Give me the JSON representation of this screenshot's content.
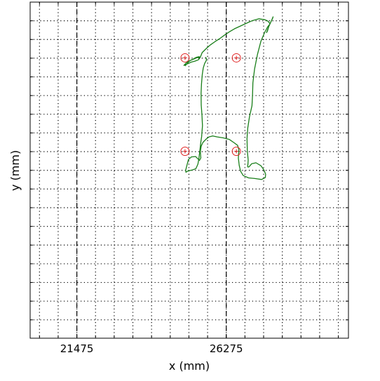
{
  "chart_data": {
    "type": "line",
    "xlabel": "x (mm)",
    "ylabel": "y (mm)",
    "xticks": [
      {
        "value": 21475,
        "label": "21475"
      },
      {
        "value": 26275,
        "label": "26275"
      }
    ],
    "xlim": [
      19975,
      30200
    ],
    "ylim": [
      -10250,
      0
    ],
    "grid": true,
    "grid_step_x": 600,
    "grid_step_y": 570,
    "colors": {
      "path": "#1a7f1a",
      "markers": "#e02020",
      "grid": "#000000",
      "reference_lines": "#000000"
    },
    "reference_lines_x": [
      21475,
      26275
    ],
    "path": {
      "x": [
        24950,
        25055,
        25135,
        25210,
        25280,
        25330,
        25395,
        25440,
        25380,
        25270,
        25150,
        25060,
        24980,
        24915,
        25000,
        25120,
        25225,
        25320,
        25395,
        25430,
        25460,
        25500,
        25650,
        25770,
        25920,
        26085,
        26230,
        26385,
        26545,
        26730,
        26935,
        27125,
        27325,
        27520,
        27615,
        27680,
        27760,
        27780,
        27730,
        27640,
        27570,
        27600,
        27660,
        27600,
        27510,
        27390,
        27280,
        27185,
        27130,
        27120,
        27100,
        27020,
        26965,
        26940,
        26950,
        26980,
        26970,
        26960,
        26975,
        27010,
        27090,
        27230,
        27390,
        27480,
        27540,
        27530,
        27410,
        27190,
        26990,
        26820,
        26735,
        26690,
        26665,
        26680,
        26640,
        26530,
        26375,
        26180,
        25985,
        25840,
        25720,
        25625,
        25525,
        25470,
        25440,
        25460,
        25415,
        25290,
        25155,
        25060,
        25010,
        24970,
        24980,
        25040,
        25180,
        25300,
        25365,
        25395,
        25425,
        25455,
        25485,
        25510,
        25495,
        25470,
        25465,
        25480,
        25505,
        25535,
        25580,
        25640,
        25630,
        25600
      ],
      "y": [
        -1950,
        -1830,
        -1770,
        -1740,
        -1700,
        -1680,
        -1665,
        -1685,
        -1760,
        -1800,
        -1830,
        -1870,
        -1900,
        -1930,
        -1840,
        -1780,
        -1740,
        -1700,
        -1690,
        -1685,
        -1640,
        -1540,
        -1400,
        -1300,
        -1200,
        -1100,
        -1000,
        -900,
        -810,
        -730,
        -640,
        -560,
        -510,
        -540,
        -580,
        -660,
        -500,
        -450,
        -560,
        -750,
        -930,
        -870,
        -690,
        -760,
        -920,
        -1190,
        -1590,
        -2040,
        -2460,
        -2830,
        -3160,
        -3500,
        -3840,
        -4160,
        -4520,
        -4820,
        -4950,
        -5010,
        -5030,
        -5020,
        -4930,
        -4900,
        -4990,
        -5110,
        -5250,
        -5350,
        -5410,
        -5380,
        -5360,
        -5290,
        -5160,
        -4980,
        -4760,
        -4500,
        -4370,
        -4290,
        -4190,
        -4140,
        -4110,
        -4080,
        -4110,
        -4180,
        -4280,
        -4390,
        -4560,
        -4750,
        -4830,
        -4710,
        -4720,
        -4800,
        -4980,
        -5130,
        -5190,
        -5150,
        -5120,
        -5080,
        -4940,
        -4770,
        -4540,
        -4290,
        -4100,
        -3770,
        -3460,
        -3140,
        -2780,
        -2490,
        -2210,
        -2010,
        -1870,
        -1770,
        -1710,
        -1680
      ]
    },
    "markers": {
      "x": [
        24950,
        26600,
        24950,
        26600
      ],
      "y": [
        -1700,
        -1700,
        -4550,
        -4550
      ],
      "style": "circle-plus"
    }
  }
}
